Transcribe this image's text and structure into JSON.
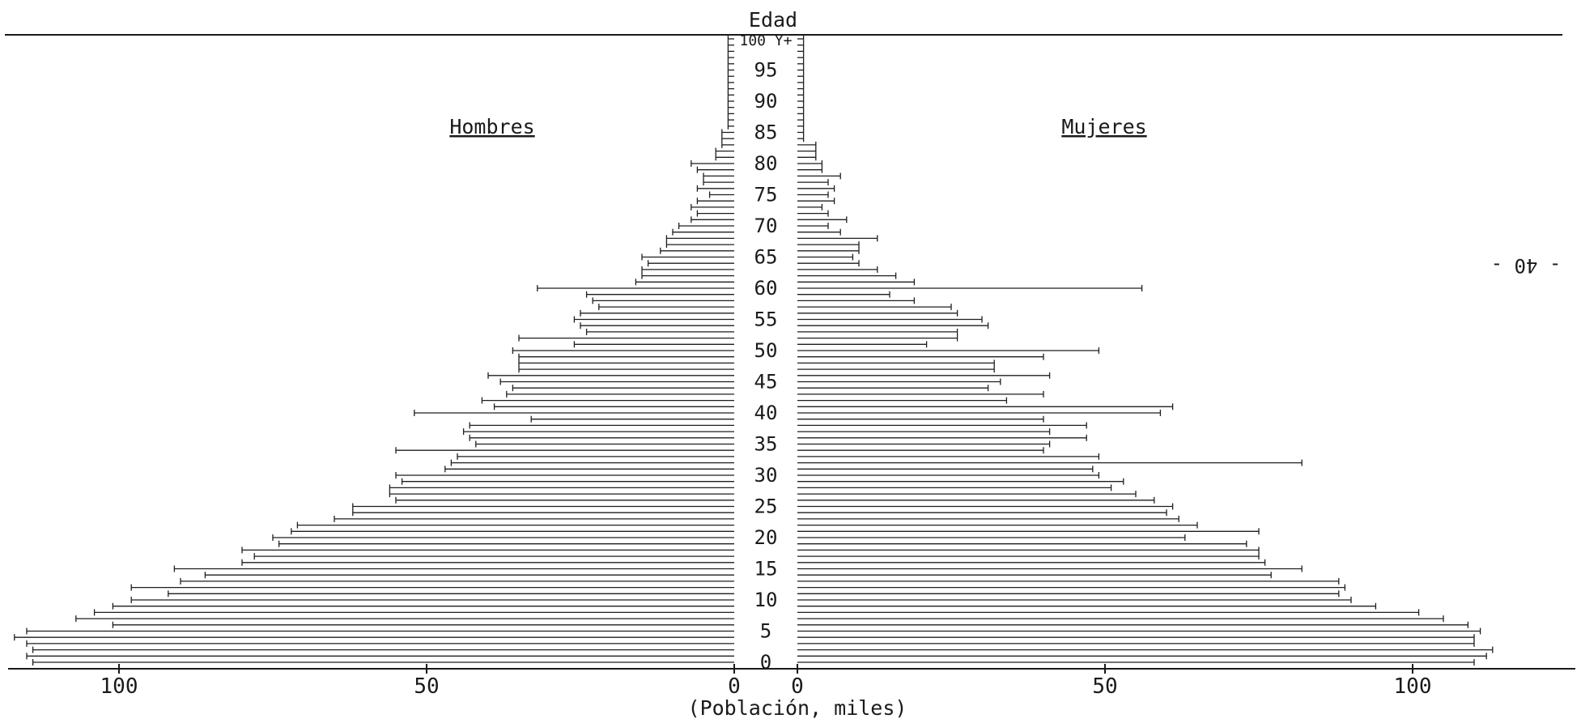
{
  "chart_data": {
    "type": "bar",
    "orientation": "horizontal-pyramid",
    "title": "Edad",
    "xlabel": "(Población, miles)",
    "left_series_label": "Hombres",
    "right_series_label": "Mujeres",
    "side_annotation": "- 40 -",
    "age_tick_labels": [
      "0",
      "5",
      "10",
      "15",
      "20",
      "25",
      "30",
      "35",
      "40",
      "45",
      "50",
      "55",
      "60",
      "65",
      "70",
      "75",
      "80",
      "85",
      "90",
      "95",
      "100 Y+"
    ],
    "age_tick_values": [
      0,
      5,
      10,
      15,
      20,
      25,
      30,
      35,
      40,
      45,
      50,
      55,
      60,
      65,
      70,
      75,
      80,
      85,
      90,
      95,
      100
    ],
    "x_tick_labels_left": [
      "100",
      "50",
      "0"
    ],
    "x_tick_labels_right": [
      "0",
      "50",
      "100"
    ],
    "x_tick_values": [
      100,
      50,
      0
    ],
    "xlim": [
      0,
      125
    ],
    "ages": [
      0,
      1,
      2,
      3,
      4,
      5,
      6,
      7,
      8,
      9,
      10,
      11,
      12,
      13,
      14,
      15,
      16,
      17,
      18,
      19,
      20,
      21,
      22,
      23,
      24,
      25,
      26,
      27,
      28,
      29,
      30,
      31,
      32,
      33,
      34,
      35,
      36,
      37,
      38,
      39,
      40,
      41,
      42,
      43,
      44,
      45,
      46,
      47,
      48,
      49,
      50,
      51,
      52,
      53,
      54,
      55,
      56,
      57,
      58,
      59,
      60,
      61,
      62,
      63,
      64,
      65,
      66,
      67,
      68,
      69,
      70,
      71,
      72,
      73,
      74,
      75,
      76,
      77,
      78,
      79,
      80,
      81,
      82,
      83,
      84,
      85,
      86,
      87,
      88,
      89,
      90,
      91,
      92,
      93,
      94,
      95,
      96,
      97,
      98,
      99,
      100
    ],
    "series": [
      {
        "name": "Hombres",
        "values": [
          114,
          115,
          114,
          115,
          117,
          115,
          101,
          107,
          104,
          101,
          98,
          92,
          98,
          90,
          86,
          91,
          80,
          78,
          80,
          74,
          75,
          72,
          71,
          65,
          62,
          62,
          55,
          56,
          56,
          54,
          55,
          47,
          46,
          45,
          55,
          42,
          43,
          44,
          43,
          33,
          52,
          39,
          41,
          37,
          36,
          38,
          40,
          35,
          35,
          35,
          36,
          26,
          35,
          24,
          25,
          26,
          25,
          22,
          23,
          24,
          32,
          16,
          15,
          15,
          14,
          15,
          12,
          11,
          11,
          10,
          9,
          7,
          6,
          7,
          6,
          4,
          6,
          5,
          5,
          6,
          7,
          3,
          3,
          2,
          2,
          2,
          1,
          1,
          1,
          1,
          1,
          1,
          1,
          1,
          1,
          1,
          1,
          1,
          1,
          1,
          1
        ]
      },
      {
        "name": "Mujeres",
        "values": [
          110,
          112,
          113,
          110,
          110,
          111,
          109,
          105,
          101,
          94,
          90,
          88,
          89,
          88,
          77,
          82,
          76,
          75,
          75,
          73,
          63,
          75,
          65,
          62,
          60,
          61,
          58,
          55,
          51,
          53,
          49,
          48,
          82,
          49,
          40,
          41,
          47,
          41,
          47,
          40,
          59,
          61,
          34,
          40,
          31,
          33,
          41,
          32,
          32,
          40,
          49,
          21,
          26,
          26,
          31,
          30,
          26,
          25,
          19,
          15,
          56,
          19,
          16,
          13,
          10,
          9,
          10,
          10,
          13,
          7,
          5,
          8,
          5,
          4,
          6,
          5,
          6,
          5,
          7,
          4,
          4,
          3,
          3,
          3,
          1,
          1,
          1,
          1,
          1,
          1,
          1,
          1,
          1,
          1,
          1,
          1,
          1,
          1,
          1,
          1,
          1
        ]
      }
    ],
    "grid": false,
    "legend": "none"
  }
}
